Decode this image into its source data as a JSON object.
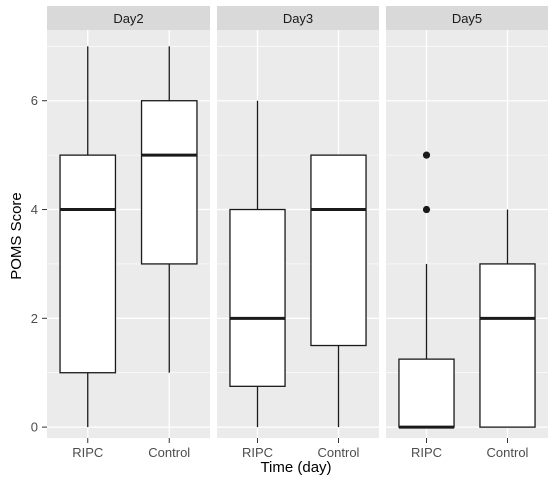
{
  "chart_data": {
    "type": "boxplot",
    "xlabel": "Time (day)",
    "ylabel": "POMS Score",
    "ylim": [
      -0.2,
      7.3
    ],
    "y_ticks": [
      0,
      2,
      4,
      6
    ],
    "categories": [
      "RIPC",
      "Control"
    ],
    "grid": true,
    "colors": {
      "panel_bg": "#EBEBEB",
      "strip_bg": "#D9D9D9",
      "grid": "#FFFFFF",
      "box_fill": "#FFFFFF",
      "box_line": "#1A1A1A"
    },
    "panels": [
      {
        "label": "Day2",
        "boxes": [
          {
            "group": "RIPC",
            "min": 0,
            "q1": 1,
            "median": 4,
            "q3": 5,
            "max": 7,
            "outliers": []
          },
          {
            "group": "Control",
            "min": 1,
            "q1": 3,
            "median": 5,
            "q3": 6,
            "max": 7,
            "outliers": []
          }
        ]
      },
      {
        "label": "Day3",
        "boxes": [
          {
            "group": "RIPC",
            "min": 0,
            "q1": 0.75,
            "median": 2,
            "q3": 4,
            "max": 6,
            "outliers": []
          },
          {
            "group": "Control",
            "min": 0,
            "q1": 1.5,
            "median": 4,
            "q3": 5,
            "max": 5,
            "outliers": []
          }
        ]
      },
      {
        "label": "Day5",
        "boxes": [
          {
            "group": "RIPC",
            "min": 0,
            "q1": 0,
            "median": 0,
            "q3": 1.25,
            "max": 3,
            "outliers": [
              4,
              5
            ]
          },
          {
            "group": "Control",
            "min": 0,
            "q1": 0,
            "median": 2,
            "q3": 3,
            "max": 4,
            "outliers": []
          }
        ]
      }
    ]
  }
}
